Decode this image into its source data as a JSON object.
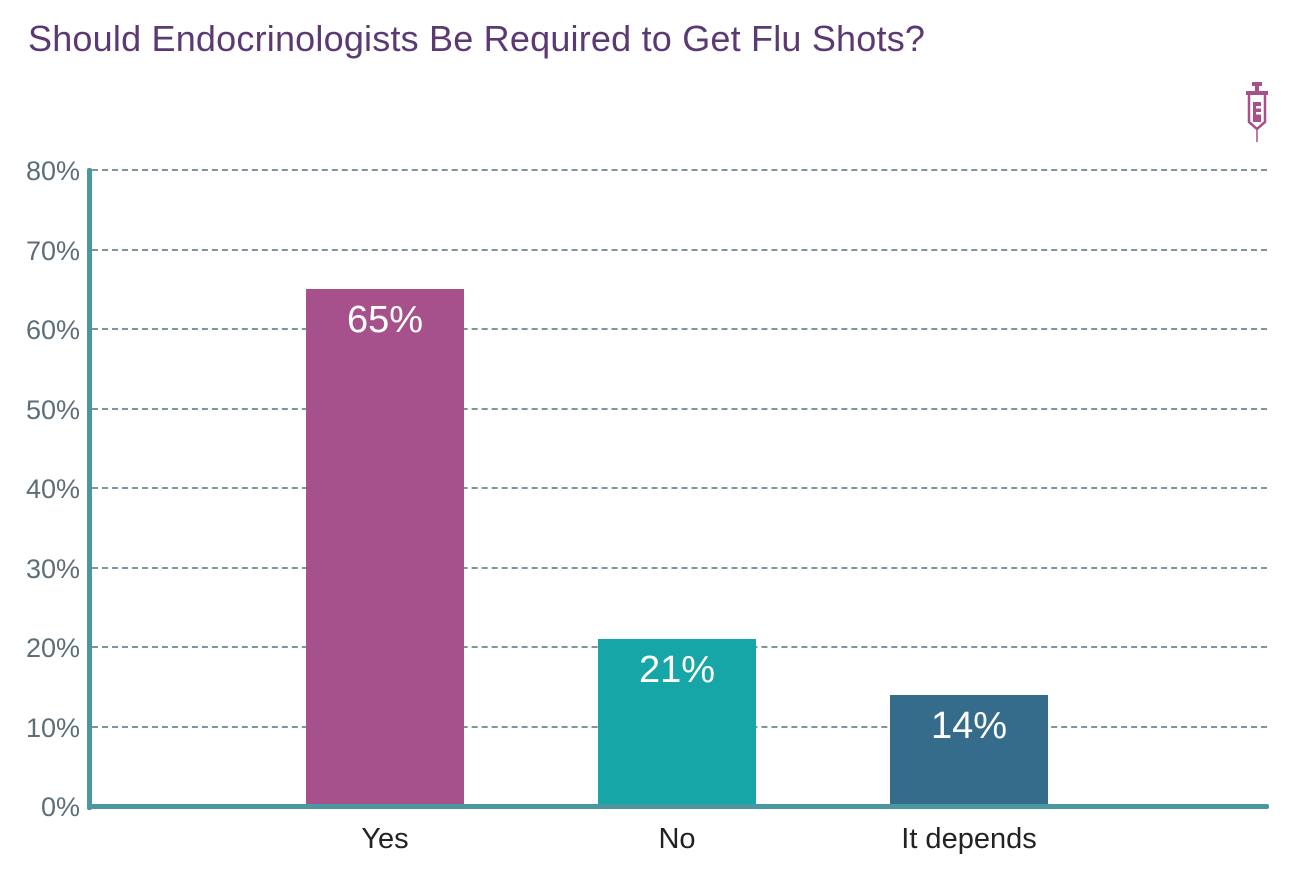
{
  "chart_data": {
    "type": "bar",
    "title": "Should Endocrinologists Be Required to Get Flu Shots?",
    "categories": [
      "Yes",
      "No",
      "It depends"
    ],
    "values": [
      65,
      21,
      14
    ],
    "value_labels": [
      "65%",
      "21%",
      "14%"
    ],
    "colors": [
      "#a6518c",
      "#17a6a8",
      "#356b8b"
    ],
    "xlabel": "",
    "ylabel": "",
    "ylim": [
      0,
      80
    ],
    "yticks": [
      "0%",
      "10%",
      "20%",
      "30%",
      "40%",
      "50%",
      "60%",
      "70%",
      "80%"
    ],
    "grid": true,
    "grid_style": "dashed",
    "legend": "none",
    "axis_color": "#4a97a0"
  },
  "header": {
    "title": "Should Endocrinologists Be Required to Get Flu Shots?",
    "title_color": "#5b3a74",
    "logo_icon": "syringe-icon",
    "logo_color": "#a6518c"
  }
}
